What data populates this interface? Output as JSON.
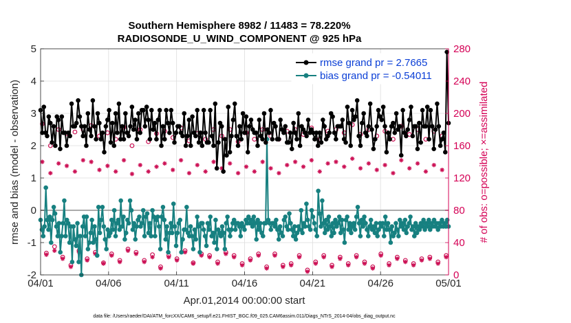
{
  "chart_data": {
    "type": "line",
    "title": "Southern Hemisphere 8982 / 11483 = 78.220%",
    "subtitle": "RADIOSONDE_U_WIND_COMPONENT @ 925 hPa",
    "xlabel": "Apr.01,2014 00:00:00 start",
    "ylabel": "rmse and bias (model - observation)",
    "ylabel_right": "# of obs: o=possible; ×=assimilated",
    "footer": "data file: /Users/raeder/DAI/ATM_forcXX/CAM6_setup/f.e21.FHIST_BGC.f09_025.CAM6assim.011/Diags_NTrS_2014-04/obs_diag_output.nc",
    "xlim": [
      0,
      30
    ],
    "ylim": [
      -2,
      5
    ],
    "ylim_right": [
      0,
      280
    ],
    "x_ticks": [
      0,
      5,
      10,
      15,
      20,
      25,
      30
    ],
    "x_tick_labels": [
      "04/01",
      "04/06",
      "04/11",
      "04/16",
      "04/21",
      "04/26",
      "05/01"
    ],
    "y_ticks": [
      -2,
      -1,
      0,
      1,
      2,
      3,
      4,
      5
    ],
    "y_tick_labels": [
      "-2",
      "-1",
      "0",
      "1",
      "2",
      "3",
      "4",
      "5"
    ],
    "y_ticks_right": [
      0,
      40,
      80,
      120,
      160,
      200,
      240,
      280
    ],
    "y_tick_labels_right": [
      "0",
      "40",
      "80",
      "120",
      "160",
      "200",
      "240",
      "280"
    ],
    "zero_line": 0,
    "legend_position": "top-right",
    "x_step_days": 0.25,
    "series": [
      {
        "name": "rmse",
        "label": "rmse grand pr = 2.7665",
        "color": "#000000",
        "axis": "left",
        "values": [
          3.1,
          2.4,
          3.2,
          2.4,
          2.3,
          2.9,
          2.7,
          2.1,
          2.6,
          2.0,
          2.9,
          2.8,
          1.9,
          2.9,
          2.4,
          2.4,
          2.0,
          2.4,
          2.3,
          3.3,
          2.6,
          2.6,
          2.7,
          3.4,
          2.9,
          2.6,
          2.3,
          2.6,
          2.0,
          3.0,
          2.5,
          2.3,
          3.4,
          2.6,
          2.2,
          3.0,
          2.7,
          2.2,
          2.4,
          1.8,
          2.6,
          2.8,
          3.1,
          2.1,
          2.7,
          2.0,
          3.0,
          2.4,
          3.3,
          2.2,
          2.6,
          2.2,
          3.0,
          2.4,
          2.3,
          2.6,
          3.2,
          2.5,
          2.8,
          2.2,
          3.0,
          2.4,
          3.1,
          3.1,
          2.6,
          3.2,
          2.8,
          2.2,
          3.1,
          2.5,
          2.7,
          2.2,
          2.8,
          3.1,
          2.0,
          2.6,
          2.2,
          3.1,
          2.7,
          2.4,
          3.1,
          2.7,
          2.1,
          2.4,
          2.6,
          2.6,
          2.4,
          2.3,
          3.0,
          2.0,
          2.3,
          2.8,
          2.0,
          2.9,
          2.4,
          2.3,
          3.1,
          2.1,
          2.4,
          2.0,
          3.1,
          2.4,
          2.1,
          2.1,
          3.1,
          2.3,
          2.0,
          3.3,
          1.3,
          2.1,
          2.7,
          2.6,
          1.2,
          2.2,
          1.7,
          3.2,
          1.8,
          2.3,
          2.8,
          3.3,
          2.3,
          2.0,
          2.6,
          2.2,
          3.0,
          2.4,
          2.9,
          1.8,
          2.6,
          2.8,
          2.5,
          2.4,
          2.4,
          2.0,
          2.8,
          2.3,
          2.2,
          3.0,
          2.1,
          2.5,
          2.4,
          3.1,
          2.2,
          2.7,
          2.6,
          2.2,
          2.2,
          2.8,
          2.5,
          2.4,
          2.6,
          2.1,
          2.1,
          2.4,
          1.9,
          2.7,
          2.4,
          2.2,
          3.0,
          2.0,
          2.6,
          2.5,
          2.4,
          2.3,
          2.8,
          2.4,
          2.5,
          2.4,
          2.2,
          2.4,
          2.0,
          2.4,
          2.1,
          2.8,
          2.6,
          2.2,
          2.3,
          2.4,
          3.0,
          2.9,
          2.4,
          2.2,
          2.6,
          2.6,
          2.6,
          2.8,
          2.2,
          2.1,
          3.2,
          2.7,
          2.0,
          3.1,
          2.8,
          2.9,
          3.4,
          2.3,
          2.0,
          2.7,
          3.0,
          2.4,
          2.3,
          2.6,
          3.3,
          2.5,
          1.9,
          2.2,
          2.6,
          3.1,
          2.9,
          2.8,
          3.2,
          2.6,
          1.8,
          2.4,
          2.2,
          2.6,
          2.7,
          2.4,
          3.0,
          2.5,
          2.6,
          1.7,
          3.1,
          2.4,
          2.3,
          2.5,
          2.8,
          3.2,
          2.3,
          2.6,
          2.6,
          1.9,
          2.7,
          2.1,
          3.1,
          2.6,
          2.6,
          3.2,
          2.2,
          3.1,
          2.6,
          1.9,
          2.5,
          3.3,
          2.6,
          2.0,
          2.2,
          2.4,
          1.8,
          4.9,
          2.7
        ]
      },
      {
        "name": "bias",
        "label": "bias grand pr = -0.54011",
        "color": "#178080",
        "axis": "left",
        "values": [
          -0.3,
          -0.6,
          -0.8,
          -0.5,
          0.7,
          -0.3,
          -0.6,
          -0.2,
          -1.0,
          -0.3,
          0.1,
          -0.1,
          -0.5,
          -0.8,
          -0.4,
          -1.3,
          -0.8,
          -0.4,
          0.3,
          -0.8,
          -0.3,
          -0.4,
          -1.0,
          -0.5,
          -1.6,
          -0.5,
          -0.9,
          -1.1,
          -0.4,
          -1.6,
          -0.8,
          -2.0,
          -0.5,
          -0.2,
          -0.8,
          -0.2,
          -1.2,
          -1.0,
          -0.7,
          -0.3,
          -1.0,
          -0.5,
          -0.9,
          -1.4,
          0.1,
          -0.7,
          -0.3,
          0.1,
          -0.5,
          -0.9,
          -1.2,
          -0.6,
          -0.8,
          -0.7,
          -0.3,
          -0.6,
          0.0,
          -0.8,
          -0.4,
          -0.3,
          -0.6,
          0.3,
          -0.5,
          -0.2,
          -0.9,
          -0.7,
          -0.3,
          -0.4,
          0.3,
          0.0,
          -0.6,
          -0.4,
          -0.9,
          -0.5,
          -0.3,
          -0.2,
          -0.5,
          -0.4,
          0.0,
          -0.8,
          -0.2,
          -0.1,
          -0.7,
          -0.4,
          -0.8,
          0.0,
          -0.2,
          -0.8,
          -0.3,
          -0.2,
          -0.5,
          -1.2,
          -0.2,
          0.1,
          -0.3,
          -0.9,
          -0.5,
          -1.3,
          -0.7,
          -0.4,
          -0.7,
          0.2,
          -0.5,
          -1.1,
          -0.7,
          -0.4,
          -0.3,
          -1.3,
          -0.9,
          -0.6,
          -0.6,
          0.1,
          -0.7,
          -0.8,
          -0.5,
          -0.8,
          -1.2,
          -0.6,
          -0.9,
          -0.2,
          -0.5,
          -1.3,
          -0.4,
          -0.4,
          -0.6,
          -0.8,
          -1.1,
          -0.4,
          -0.6,
          -0.2,
          -0.8,
          -0.7,
          -1.0,
          -0.3,
          -1.2,
          -0.6,
          -0.7,
          -0.8,
          -0.5,
          -0.7,
          -1.2,
          -0.4,
          -0.2,
          -0.6,
          -0.8,
          -0.6,
          -0.4,
          -0.3,
          -0.6,
          -0.4,
          -0.4,
          -0.5,
          -0.8,
          -0.4,
          -0.5,
          -0.6,
          -0.3,
          -0.4,
          -0.2,
          -0.4,
          -0.3,
          -0.5,
          -0.2,
          -0.4,
          -0.9,
          -0.3,
          -0.6,
          -0.4,
          -0.7,
          -0.8,
          -0.4,
          -0.4,
          2.2,
          -0.3,
          -0.4,
          -0.6,
          -0.4,
          -0.4,
          -0.5,
          -0.3,
          -0.6,
          -0.9,
          -0.5,
          -0.7,
          -0.8,
          -0.3,
          -0.2,
          -0.5,
          -0.6,
          -0.1,
          -0.4,
          -0.6,
          -0.8,
          -0.5,
          -0.9,
          -0.7,
          -0.5,
          -0.6,
          0.0,
          -0.7,
          -0.4,
          -0.5,
          0.2,
          -0.3,
          -0.5,
          -0.6,
          0.0,
          -0.2,
          -0.4,
          -0.6,
          -0.8,
          0.6,
          -0.1,
          -0.5,
          0.3,
          -0.4,
          -0.7,
          -0.3,
          -0.6,
          -0.2,
          -0.5,
          -0.8,
          -0.4,
          -0.7,
          -0.3,
          -0.5,
          -0.4,
          -0.2,
          -0.7,
          -0.3,
          -0.6,
          -1.0,
          -0.3,
          -0.2,
          -0.6,
          -0.4,
          -0.7,
          -0.5,
          -0.4,
          -0.6,
          -0.2,
          0.1,
          -0.4,
          -0.8,
          -0.3,
          -0.5,
          -0.2,
          -0.4,
          -0.6,
          -0.8,
          -0.5,
          -0.3,
          -0.6,
          -0.5,
          -0.7,
          -0.4,
          -0.8,
          -0.6,
          -0.4,
          -0.5,
          -0.4,
          -0.8,
          -0.2,
          -0.6,
          -0.4,
          -0.6,
          -1.0,
          -0.5,
          -0.8,
          -0.7,
          -0.4,
          -0.6,
          -0.8,
          -0.3,
          -0.5,
          -0.4,
          -0.6,
          -0.3,
          -0.7,
          -0.5,
          -0.4,
          -0.2,
          -0.6,
          -0.5,
          -0.8,
          -0.4,
          -0.7,
          -0.5,
          -0.6,
          -0.4,
          -0.5,
          -0.3,
          -0.6,
          -0.4,
          -0.5,
          -0.3,
          -0.6,
          -0.4,
          -0.5,
          -0.3,
          -0.5,
          -0.4,
          -0.6,
          -0.4,
          -0.5,
          -0.3,
          -0.5,
          -0.4,
          -0.5,
          -0.3,
          -0.5
        ]
      },
      {
        "name": "possible",
        "label": "# of obs possible",
        "color": "#cc1155",
        "axis": "right",
        "marker": "circle",
        "values": [
          187,
          27,
          160,
          35,
          180,
          22,
          175,
          12,
          177,
          30,
          180,
          20,
          185,
          28,
          172,
          15,
          176,
          26,
          168,
          18,
          183,
          32,
          160,
          28,
          180,
          18,
          165,
          25,
          175,
          10,
          178,
          24,
          170,
          20,
          182,
          30,
          166,
          15,
          175,
          26,
          168,
          24,
          180,
          16,
          172,
          28,
          180,
          24,
          165,
          14,
          176,
          20,
          168,
          26,
          180,
          10,
          172,
          26,
          168,
          12,
          178,
          14,
          180,
          24,
          174,
          6,
          182,
          16,
          168,
          24,
          178,
          12,
          180,
          22,
          176,
          14,
          186,
          24,
          174,
          16,
          180,
          10,
          172,
          26,
          178,
          14,
          168,
          22,
          184,
          18,
          174,
          14,
          180,
          20,
          168,
          22,
          178,
          16,
          172,
          24,
          168,
          14,
          176,
          20,
          172,
          24,
          184,
          12,
          166,
          26,
          180,
          12,
          176,
          20,
          170,
          14,
          178,
          24,
          172,
          18,
          180,
          12,
          172,
          26,
          168,
          16,
          180,
          22,
          174,
          14,
          166,
          24,
          180,
          12,
          174,
          26,
          168,
          16,
          176,
          22,
          170,
          14,
          180,
          24,
          172,
          16,
          166,
          22,
          176,
          12,
          180,
          26,
          170,
          16,
          178,
          14,
          172,
          24,
          168,
          18,
          180,
          14,
          174,
          24,
          168,
          16,
          176,
          22,
          172,
          14,
          180,
          24,
          170,
          16,
          178,
          14,
          172,
          22,
          166,
          14,
          180,
          24,
          172,
          16,
          176,
          14,
          168,
          24,
          180,
          12,
          174,
          22,
          168,
          14,
          178,
          24,
          172,
          16,
          176,
          14,
          168,
          22,
          180,
          12,
          174,
          24
        ]
      },
      {
        "name": "assimilated",
        "label": "# of obs assimilated",
        "color": "#cc1155",
        "axis": "right",
        "marker": "star",
        "values": [
          140,
          25,
          126,
          30,
          138,
          20,
          135,
          10,
          128,
          28,
          142,
          18,
          140,
          26,
          130,
          14,
          135,
          24,
          128,
          16,
          142,
          30,
          125,
          26,
          136,
          16,
          128,
          22,
          134,
          8,
          138,
          22,
          130,
          18,
          142,
          28,
          126,
          14,
          136,
          24,
          128,
          22,
          140,
          14,
          132,
          26,
          138,
          22,
          126,
          12,
          134,
          18,
          128,
          24,
          140,
          8,
          132,
          24,
          126,
          10,
          136,
          12,
          140,
          22,
          134,
          4,
          142,
          14,
          128,
          22,
          138,
          10,
          140,
          20,
          134,
          12,
          144,
          22,
          132,
          14,
          138,
          8,
          130,
          24,
          136,
          12,
          126,
          20,
          142,
          16,
          132,
          12,
          138,
          18,
          128,
          20,
          136,
          14,
          130,
          22,
          126,
          12,
          134,
          18,
          130,
          22,
          142,
          10,
          124,
          24,
          138,
          10,
          134,
          18,
          128,
          12,
          136,
          22,
          130,
          16,
          138,
          10,
          130,
          24,
          126,
          14,
          138,
          20,
          132,
          12,
          124,
          22,
          138,
          10,
          132,
          24,
          126,
          14,
          134,
          20,
          128,
          12,
          138,
          22,
          130,
          14,
          124,
          20,
          134,
          10,
          138,
          24,
          128,
          14,
          136,
          12,
          130,
          22,
          126,
          16,
          138,
          12,
          132,
          22,
          126,
          14,
          134,
          20,
          130,
          12,
          138,
          22,
          128,
          14,
          136,
          12,
          130,
          20,
          124,
          12,
          138,
          22,
          130,
          14,
          134,
          12,
          126,
          22,
          138,
          10,
          132,
          20,
          126,
          12,
          136,
          22,
          130,
          14,
          134,
          12,
          126,
          20,
          138,
          10,
          132,
          22
        ]
      }
    ]
  }
}
